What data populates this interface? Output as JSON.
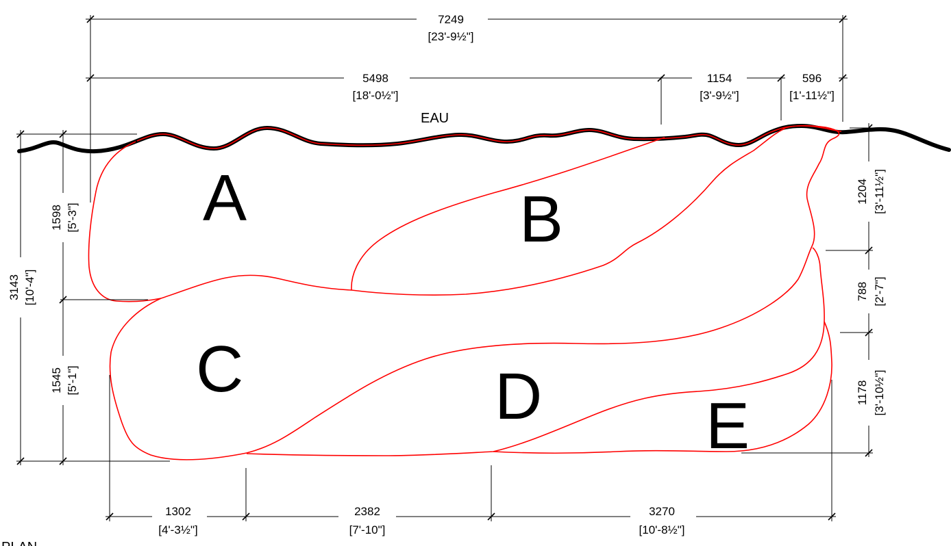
{
  "labels": {
    "water": "EAU",
    "plan": "PLAN"
  },
  "zones": [
    {
      "id": "A",
      "label": "A"
    },
    {
      "id": "B",
      "label": "B"
    },
    {
      "id": "C",
      "label": "C"
    },
    {
      "id": "D",
      "label": "D"
    },
    {
      "id": "E",
      "label": "E"
    }
  ],
  "dimensions": {
    "top_overall": {
      "mm": "7249",
      "imperial": "[23'-9½\"]"
    },
    "top_a": {
      "mm": "5498",
      "imperial": "[18'-0½\"]"
    },
    "top_b": {
      "mm": "1154",
      "imperial": "[3'-9½\"]"
    },
    "top_c": {
      "mm": "596",
      "imperial": "[1'-11½\"]"
    },
    "left_overall": {
      "mm": "3143",
      "imperial": "[10'-4\"]"
    },
    "left_upper": {
      "mm": "1598",
      "imperial": "[5'-3\"]"
    },
    "left_lower": {
      "mm": "1545",
      "imperial": "[5'-1\"]"
    },
    "right_top": {
      "mm": "1204",
      "imperial": "[3'-11½\"]"
    },
    "right_mid": {
      "mm": "788",
      "imperial": "[2'-7\"]"
    },
    "right_bot": {
      "mm": "1178",
      "imperial": "[3'-10½\"]"
    },
    "bottom_1": {
      "mm": "1302",
      "imperial": "[4'-3½\"]"
    },
    "bottom_2": {
      "mm": "2382",
      "imperial": "[7'-10\"]"
    },
    "bottom_3": {
      "mm": "3270",
      "imperial": "[10'-8½\"]"
    }
  }
}
